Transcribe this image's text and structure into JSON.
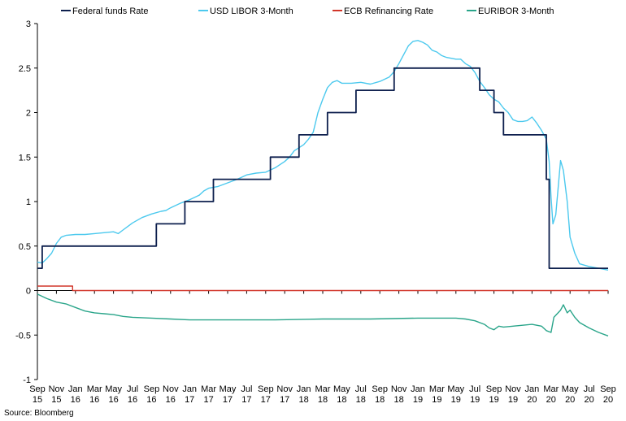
{
  "source": "Source: Bloomberg",
  "colors": {
    "fed": "#0d1f4d",
    "libor": "#4cc9ee",
    "ecb": "#d2362a",
    "euribor": "#2aa58a"
  },
  "chart_data": {
    "type": "line",
    "title": "",
    "xlabel": "",
    "ylabel": "",
    "xlim": [
      0,
      60
    ],
    "ylim": [
      -1,
      3
    ],
    "yticks": [
      "3",
      "2.5",
      "2",
      "1.5",
      "1",
      "0.5",
      "0",
      "-0.5",
      "-1"
    ],
    "ytick_values": [
      3,
      2.5,
      2,
      1.5,
      1,
      0.5,
      0,
      -0.5,
      -1
    ],
    "x_ticks": [
      {
        "m": "Sep",
        "y": "15"
      },
      {
        "m": "Nov",
        "y": "15"
      },
      {
        "m": "Jan",
        "y": "16"
      },
      {
        "m": "Mar",
        "y": "16"
      },
      {
        "m": "May",
        "y": "16"
      },
      {
        "m": "Jul",
        "y": "16"
      },
      {
        "m": "Sep",
        "y": "16"
      },
      {
        "m": "Nov",
        "y": "16"
      },
      {
        "m": "Jan",
        "y": "17"
      },
      {
        "m": "Mar",
        "y": "17"
      },
      {
        "m": "May",
        "y": "17"
      },
      {
        "m": "Jul",
        "y": "17"
      },
      {
        "m": "Sep",
        "y": "17"
      },
      {
        "m": "Nov",
        "y": "17"
      },
      {
        "m": "Jan",
        "y": "18"
      },
      {
        "m": "Mar",
        "y": "18"
      },
      {
        "m": "May",
        "y": "18"
      },
      {
        "m": "Jul",
        "y": "18"
      },
      {
        "m": "Sep",
        "y": "18"
      },
      {
        "m": "Nov",
        "y": "18"
      },
      {
        "m": "Jan",
        "y": "19"
      },
      {
        "m": "Mar",
        "y": "19"
      },
      {
        "m": "May",
        "y": "19"
      },
      {
        "m": "Jul",
        "y": "19"
      },
      {
        "m": "Sep",
        "y": "19"
      },
      {
        "m": "Nov",
        "y": "19"
      },
      {
        "m": "Jan",
        "y": "20"
      },
      {
        "m": "Mar",
        "y": "20"
      },
      {
        "m": "May",
        "y": "20"
      },
      {
        "m": "Jul",
        "y": "20"
      },
      {
        "m": "Sep",
        "y": "20"
      }
    ],
    "legend_position": "top",
    "series": [
      {
        "name": "Federal funds Rate",
        "color_key": "fed",
        "step": true,
        "points": [
          [
            0,
            0.25
          ],
          [
            0.5,
            0.25
          ],
          [
            0.5,
            0.5
          ],
          [
            12.5,
            0.5
          ],
          [
            12.5,
            0.75
          ],
          [
            15.5,
            0.75
          ],
          [
            15.5,
            1
          ],
          [
            18.5,
            1
          ],
          [
            18.5,
            1.25
          ],
          [
            24.5,
            1.25
          ],
          [
            24.5,
            1.5
          ],
          [
            27.5,
            1.5
          ],
          [
            27.5,
            1.75
          ],
          [
            30.5,
            1.75
          ],
          [
            30.5,
            2
          ],
          [
            33.5,
            2
          ],
          [
            33.5,
            2.25
          ],
          [
            37.5,
            2.25
          ],
          [
            37.5,
            2.5
          ],
          [
            46.5,
            2.5
          ],
          [
            46.5,
            2.25
          ],
          [
            48,
            2.25
          ],
          [
            48,
            2
          ],
          [
            49,
            2
          ],
          [
            49,
            1.75
          ],
          [
            53.5,
            1.75
          ],
          [
            53.5,
            1.25
          ],
          [
            53.8,
            1.25
          ],
          [
            53.8,
            0.25
          ],
          [
            60,
            0.25
          ]
        ]
      },
      {
        "name": "USD LIBOR 3-Month",
        "color_key": "libor",
        "step": false,
        "points": [
          [
            0,
            0.32
          ],
          [
            0.5,
            0.31
          ],
          [
            1,
            0.36
          ],
          [
            1.5,
            0.42
          ],
          [
            2,
            0.53
          ],
          [
            2.5,
            0.6
          ],
          [
            3,
            0.62
          ],
          [
            4,
            0.63
          ],
          [
            5,
            0.63
          ],
          [
            6,
            0.64
          ],
          [
            7,
            0.65
          ],
          [
            8,
            0.66
          ],
          [
            8.5,
            0.64
          ],
          [
            9,
            0.68
          ],
          [
            9.5,
            0.72
          ],
          [
            10,
            0.76
          ],
          [
            11,
            0.82
          ],
          [
            12,
            0.86
          ],
          [
            13,
            0.89
          ],
          [
            13.5,
            0.9
          ],
          [
            14,
            0.93
          ],
          [
            15,
            0.98
          ],
          [
            16,
            1.02
          ],
          [
            17,
            1.07
          ],
          [
            17.5,
            1.12
          ],
          [
            18,
            1.15
          ],
          [
            19,
            1.17
          ],
          [
            20,
            1.21
          ],
          [
            21,
            1.25
          ],
          [
            22,
            1.3
          ],
          [
            23,
            1.32
          ],
          [
            24,
            1.33
          ],
          [
            25,
            1.38
          ],
          [
            26,
            1.45
          ],
          [
            26.5,
            1.5
          ],
          [
            27,
            1.57
          ],
          [
            28,
            1.64
          ],
          [
            28.5,
            1.7
          ],
          [
            29,
            1.78
          ],
          [
            29.5,
            2.0
          ],
          [
            30,
            2.15
          ],
          [
            30.5,
            2.28
          ],
          [
            31,
            2.34
          ],
          [
            31.5,
            2.36
          ],
          [
            32,
            2.33
          ],
          [
            33,
            2.33
          ],
          [
            34,
            2.34
          ],
          [
            35,
            2.32
          ],
          [
            36,
            2.35
          ],
          [
            37,
            2.4
          ],
          [
            37.5,
            2.46
          ],
          [
            38,
            2.55
          ],
          [
            38.5,
            2.65
          ],
          [
            39,
            2.75
          ],
          [
            39.5,
            2.8
          ],
          [
            40,
            2.81
          ],
          [
            40.5,
            2.79
          ],
          [
            41,
            2.76
          ],
          [
            41.5,
            2.7
          ],
          [
            42,
            2.68
          ],
          [
            42.5,
            2.64
          ],
          [
            43,
            2.62
          ],
          [
            44,
            2.6
          ],
          [
            44.5,
            2.6
          ],
          [
            45,
            2.55
          ],
          [
            45.5,
            2.52
          ],
          [
            46,
            2.45
          ],
          [
            46.5,
            2.35
          ],
          [
            47,
            2.28
          ],
          [
            47.5,
            2.2
          ],
          [
            48,
            2.15
          ],
          [
            48.5,
            2.12
          ],
          [
            49,
            2.05
          ],
          [
            49.5,
            2.0
          ],
          [
            50,
            1.92
          ],
          [
            50.5,
            1.9
          ],
          [
            51,
            1.9
          ],
          [
            51.5,
            1.91
          ],
          [
            52,
            1.95
          ],
          [
            52.5,
            1.88
          ],
          [
            53,
            1.8
          ],
          [
            53.5,
            1.7
          ],
          [
            53.8,
            1.45
          ],
          [
            54,
            1.05
          ],
          [
            54.2,
            0.75
          ],
          [
            54.5,
            0.85
          ],
          [
            55,
            1.46
          ],
          [
            55.3,
            1.35
          ],
          [
            55.7,
            1.0
          ],
          [
            56,
            0.6
          ],
          [
            56.5,
            0.42
          ],
          [
            57,
            0.3
          ],
          [
            58,
            0.27
          ],
          [
            59,
            0.25
          ],
          [
            60,
            0.23
          ]
        ]
      },
      {
        "name": "ECB Refinancing Rate",
        "color_key": "ecb",
        "step": true,
        "points": [
          [
            0,
            0.05
          ],
          [
            3.7,
            0.05
          ],
          [
            3.7,
            0.0
          ],
          [
            60,
            0.0
          ]
        ]
      },
      {
        "name": "EURIBOR 3-Month",
        "color_key": "euribor",
        "step": false,
        "points": [
          [
            0,
            -0.04
          ],
          [
            1,
            -0.09
          ],
          [
            2,
            -0.13
          ],
          [
            3,
            -0.15
          ],
          [
            4,
            -0.19
          ],
          [
            5,
            -0.23
          ],
          [
            6,
            -0.25
          ],
          [
            7,
            -0.26
          ],
          [
            8,
            -0.27
          ],
          [
            9,
            -0.29
          ],
          [
            10,
            -0.3
          ],
          [
            12,
            -0.31
          ],
          [
            14,
            -0.32
          ],
          [
            16,
            -0.33
          ],
          [
            20,
            -0.33
          ],
          [
            25,
            -0.33
          ],
          [
            30,
            -0.32
          ],
          [
            35,
            -0.32
          ],
          [
            40,
            -0.31
          ],
          [
            44,
            -0.31
          ],
          [
            45,
            -0.32
          ],
          [
            46,
            -0.34
          ],
          [
            47,
            -0.38
          ],
          [
            47.5,
            -0.42
          ],
          [
            48,
            -0.44
          ],
          [
            48.5,
            -0.4
          ],
          [
            49,
            -0.41
          ],
          [
            50,
            -0.4
          ],
          [
            51,
            -0.39
          ],
          [
            52,
            -0.38
          ],
          [
            53,
            -0.4
          ],
          [
            53.5,
            -0.45
          ],
          [
            54,
            -0.47
          ],
          [
            54.3,
            -0.3
          ],
          [
            55,
            -0.22
          ],
          [
            55.3,
            -0.16
          ],
          [
            55.7,
            -0.25
          ],
          [
            56,
            -0.22
          ],
          [
            56.5,
            -0.3
          ],
          [
            57,
            -0.36
          ],
          [
            58,
            -0.42
          ],
          [
            59,
            -0.47
          ],
          [
            60,
            -0.51
          ]
        ]
      }
    ]
  }
}
